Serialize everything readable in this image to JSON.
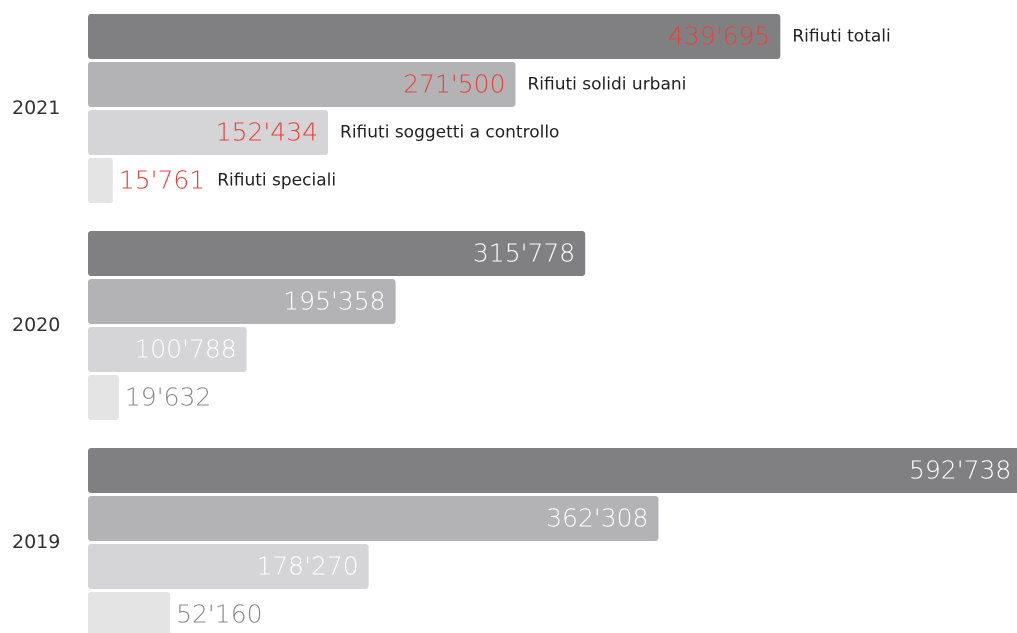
{
  "chart_data": {
    "type": "bar",
    "orientation": "horizontal",
    "categories": [
      "2021",
      "2020",
      "2019"
    ],
    "series": [
      {
        "name": "Rifiuti totali",
        "color": "#808083",
        "values": [
          439695,
          315778,
          592738
        ],
        "value_labels": [
          "439'695",
          "315'778",
          "592'738"
        ]
      },
      {
        "name": "Rifiuti solidi urbani",
        "color": "#b3b3b6",
        "values": [
          271500,
          195358,
          362308
        ],
        "value_labels": [
          "271'500",
          "195'358",
          "362'308"
        ]
      },
      {
        "name": "Rifiuti soggetti a controllo",
        "color": "#d5d5d7",
        "values": [
          152434,
          100788,
          178270
        ],
        "value_labels": [
          "152'434",
          "100'788",
          "178'270"
        ]
      },
      {
        "name": "Rifiuti speciali",
        "color": "#e4e4e5",
        "values": [
          15761,
          19632,
          52160
        ],
        "value_labels": [
          "15'761",
          "19'632",
          "52'160"
        ]
      }
    ],
    "value_label_colors": [
      "#e8403a",
      "#ffffff",
      "#ffffff"
    ],
    "xlim": [
      0,
      590000
    ]
  }
}
